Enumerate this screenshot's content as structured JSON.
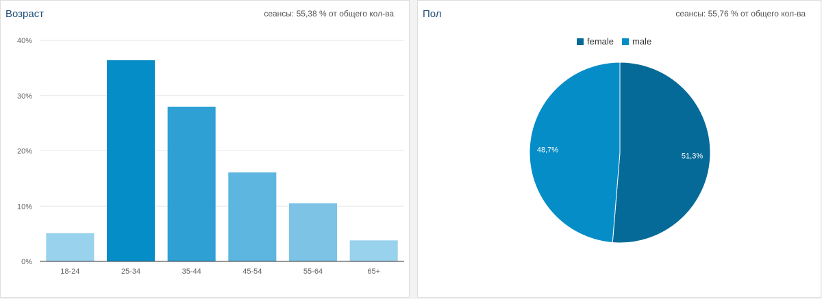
{
  "age_panel": {
    "title": "Возраст",
    "note": "сеансы: 55,38 % от общего кол-ва"
  },
  "gender_panel": {
    "title": "Пол",
    "note": "сеансы: 55,76 % от общего кол-ва"
  },
  "chart_data": [
    {
      "type": "bar",
      "title": "Возраст",
      "categories": [
        "18-24",
        "25-34",
        "35-44",
        "45-54",
        "55-64",
        "65+"
      ],
      "values": [
        5.1,
        36.4,
        28.0,
        16.1,
        10.5,
        3.8
      ],
      "colors": [
        "#98d2ec",
        "#058dc7",
        "#2ea0d4",
        "#5db6df",
        "#7cc3e6",
        "#98d2ec"
      ],
      "yticks": [
        "0%",
        "10%",
        "20%",
        "30%",
        "40%"
      ],
      "ylim": [
        0,
        40
      ],
      "grid": true
    },
    {
      "type": "pie",
      "title": "Пол",
      "labels": [
        "female",
        "male"
      ],
      "values": [
        51.3,
        48.7
      ],
      "value_labels": [
        "51,3%",
        "48,7%"
      ],
      "colors": [
        "#066a98",
        "#058dc7"
      ],
      "legend_position": "top-center"
    }
  ]
}
